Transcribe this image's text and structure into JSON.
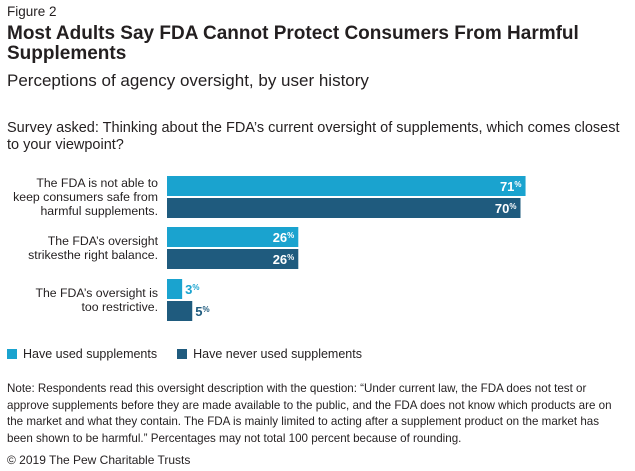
{
  "figure_label": "Figure 2",
  "title": "Most Adults Say FDA Cannot Protect Consumers From Harmful Supplements",
  "subtitle": "Perceptions of agency oversight, by user history",
  "question": "Survey asked: Thinking about the FDA’s current oversight of supplements, which comes closest to your viewpoint?",
  "note": "Note: Respondents read this oversight description with the question: “Under current law, the FDA does not test or approve supplements before they are made available to the public, and the FDA does not know which products are on the market and what they contain. The FDA is mainly limited to acting after a supplement product on the market has been shown to be harmful.” Percentages may not total 100 percent because of rounding.",
  "copyright": "© 2019 The Pew Charitable Trusts",
  "colors": {
    "used": "#1aa3cf",
    "never": "#1f5b7e"
  },
  "chart_data": {
    "type": "bar",
    "orientation": "horizontal",
    "categories": [
      [
        "The FDA is not able to",
        "keep consumers safe from",
        "harmful supplements."
      ],
      [
        "The FDA’s oversight",
        "strikesthe right balance."
      ],
      [
        "The FDA’s oversight is",
        "too restrictive."
      ]
    ],
    "series": [
      {
        "name": "Have used supplements",
        "values": [
          71,
          26,
          3
        ]
      },
      {
        "name": "Have never used supplements",
        "values": [
          70,
          26,
          5
        ]
      }
    ],
    "value_suffix": "%",
    "xlim": [
      0,
      100
    ],
    "legend_position": "bottom-left",
    "grid": false
  }
}
